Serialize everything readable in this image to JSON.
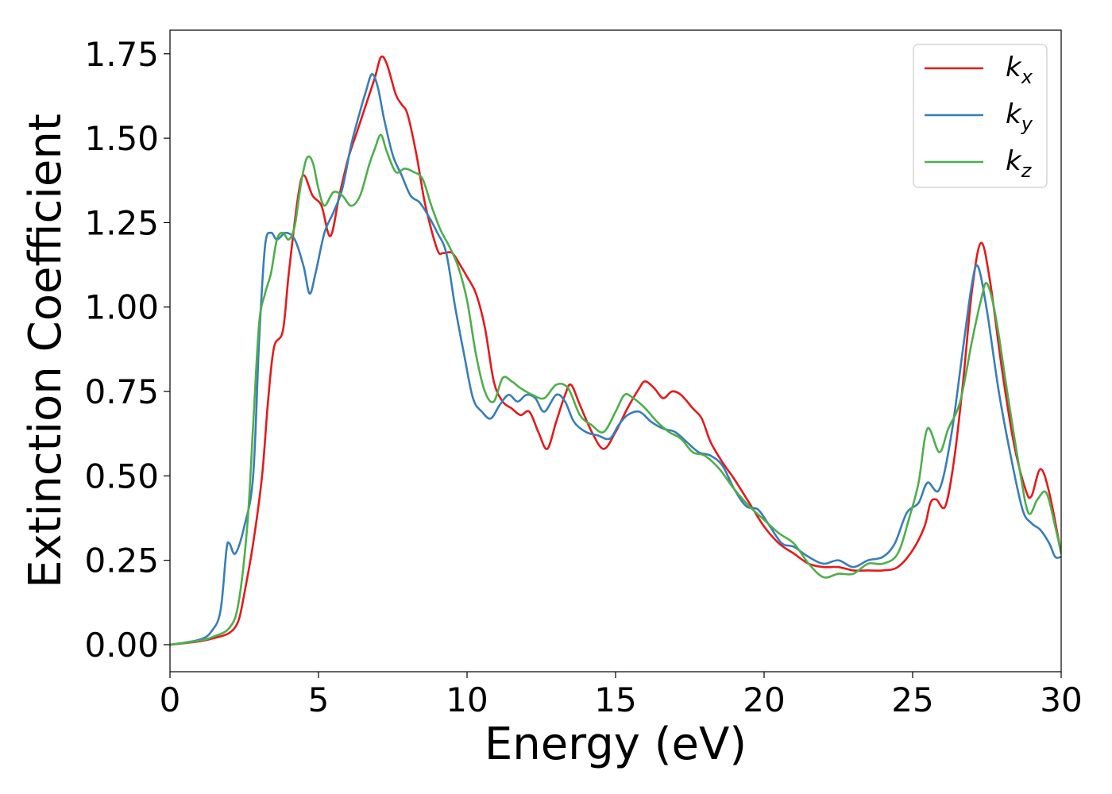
{
  "chart_data": {
    "type": "line",
    "title": "",
    "xlabel": "Energy (eV)",
    "ylabel": "Extinction Coefficient",
    "xlim": [
      0,
      30
    ],
    "ylim": [
      -0.08,
      1.82
    ],
    "xticks": [
      0,
      5,
      10,
      15,
      20,
      25,
      30
    ],
    "xtick_labels": [
      "0",
      "5",
      "10",
      "15",
      "20",
      "25",
      "30"
    ],
    "yticks": [
      0,
      0.25,
      0.5,
      0.75,
      1.0,
      1.25,
      1.5,
      1.75
    ],
    "ytick_labels": [
      "0.00",
      "0.25",
      "0.50",
      "0.75",
      "1.00",
      "1.25",
      "1.50",
      "1.75"
    ],
    "grid": false,
    "legend_position": "top-right",
    "series": [
      {
        "name": "k_x",
        "legend_base": "k",
        "legend_sub": "x",
        "color": "#e41a1c",
        "points": [
          [
            0,
            0
          ],
          [
            1,
            0.01
          ],
          [
            1.5,
            0.02
          ],
          [
            2,
            0.035
          ],
          [
            2.3,
            0.07
          ],
          [
            2.5,
            0.15
          ],
          [
            2.8,
            0.3
          ],
          [
            3.1,
            0.5
          ],
          [
            3.3,
            0.72
          ],
          [
            3.5,
            0.88
          ],
          [
            3.8,
            0.93
          ],
          [
            4.0,
            1.1
          ],
          [
            4.3,
            1.32
          ],
          [
            4.5,
            1.39
          ],
          [
            4.8,
            1.33
          ],
          [
            5.1,
            1.3
          ],
          [
            5.4,
            1.21
          ],
          [
            5.7,
            1.33
          ],
          [
            6.0,
            1.44
          ],
          [
            6.3,
            1.52
          ],
          [
            6.6,
            1.6
          ],
          [
            6.9,
            1.68
          ],
          [
            7.1,
            1.74
          ],
          [
            7.3,
            1.72
          ],
          [
            7.6,
            1.63
          ],
          [
            7.8,
            1.6
          ],
          [
            8.0,
            1.57
          ],
          [
            8.3,
            1.45
          ],
          [
            8.6,
            1.3
          ],
          [
            9.0,
            1.17
          ],
          [
            9.2,
            1.16
          ],
          [
            9.5,
            1.16
          ],
          [
            9.8,
            1.12
          ],
          [
            10.0,
            1.09
          ],
          [
            10.3,
            1.04
          ],
          [
            10.6,
            0.94
          ],
          [
            10.9,
            0.78
          ],
          [
            11.2,
            0.72
          ],
          [
            11.5,
            0.7
          ],
          [
            11.8,
            0.68
          ],
          [
            12.1,
            0.69
          ],
          [
            12.4,
            0.63
          ],
          [
            12.7,
            0.58
          ],
          [
            13.0,
            0.66
          ],
          [
            13.3,
            0.74
          ],
          [
            13.5,
            0.77
          ],
          [
            13.8,
            0.71
          ],
          [
            14.2,
            0.63
          ],
          [
            14.6,
            0.58
          ],
          [
            15.0,
            0.63
          ],
          [
            15.4,
            0.7
          ],
          [
            15.8,
            0.76
          ],
          [
            16.0,
            0.78
          ],
          [
            16.3,
            0.76
          ],
          [
            16.6,
            0.73
          ],
          [
            16.9,
            0.75
          ],
          [
            17.2,
            0.74
          ],
          [
            17.6,
            0.7
          ],
          [
            17.9,
            0.67
          ],
          [
            18.2,
            0.6
          ],
          [
            18.6,
            0.54
          ],
          [
            19.0,
            0.49
          ],
          [
            19.5,
            0.42
          ],
          [
            20.0,
            0.35
          ],
          [
            20.5,
            0.3
          ],
          [
            21.0,
            0.27
          ],
          [
            21.5,
            0.24
          ],
          [
            22.0,
            0.23
          ],
          [
            22.5,
            0.23
          ],
          [
            23.0,
            0.22
          ],
          [
            23.5,
            0.22
          ],
          [
            24.0,
            0.22
          ],
          [
            24.5,
            0.23
          ],
          [
            25.0,
            0.28
          ],
          [
            25.4,
            0.35
          ],
          [
            25.6,
            0.42
          ],
          [
            25.8,
            0.43
          ],
          [
            26.1,
            0.41
          ],
          [
            26.4,
            0.55
          ],
          [
            26.7,
            0.78
          ],
          [
            27.0,
            1.05
          ],
          [
            27.3,
            1.19
          ],
          [
            27.6,
            1.08
          ],
          [
            28.0,
            0.82
          ],
          [
            28.4,
            0.6
          ],
          [
            28.8,
            0.46
          ],
          [
            29.0,
            0.44
          ],
          [
            29.3,
            0.52
          ],
          [
            29.6,
            0.45
          ],
          [
            30,
            0.27
          ]
        ]
      },
      {
        "name": "k_y",
        "legend_base": "k",
        "legend_sub": "y",
        "color": "#377eb8",
        "points": [
          [
            0,
            0
          ],
          [
            1,
            0.015
          ],
          [
            1.4,
            0.04
          ],
          [
            1.7,
            0.1
          ],
          [
            1.9,
            0.28
          ],
          [
            2.0,
            0.3
          ],
          [
            2.2,
            0.27
          ],
          [
            2.5,
            0.35
          ],
          [
            2.8,
            0.5
          ],
          [
            3.0,
            0.9
          ],
          [
            3.2,
            1.18
          ],
          [
            3.4,
            1.22
          ],
          [
            3.6,
            1.2
          ],
          [
            3.9,
            1.22
          ],
          [
            4.2,
            1.2
          ],
          [
            4.5,
            1.12
          ],
          [
            4.7,
            1.04
          ],
          [
            4.9,
            1.1
          ],
          [
            5.2,
            1.22
          ],
          [
            5.5,
            1.28
          ],
          [
            5.8,
            1.35
          ],
          [
            6.1,
            1.48
          ],
          [
            6.4,
            1.58
          ],
          [
            6.6,
            1.64
          ],
          [
            6.8,
            1.69
          ],
          [
            7.0,
            1.65
          ],
          [
            7.2,
            1.56
          ],
          [
            7.5,
            1.45
          ],
          [
            7.8,
            1.39
          ],
          [
            8.1,
            1.33
          ],
          [
            8.4,
            1.31
          ],
          [
            8.7,
            1.27
          ],
          [
            9.0,
            1.22
          ],
          [
            9.3,
            1.16
          ],
          [
            9.6,
            1.0
          ],
          [
            9.9,
            0.86
          ],
          [
            10.2,
            0.73
          ],
          [
            10.5,
            0.69
          ],
          [
            10.8,
            0.67
          ],
          [
            11.1,
            0.71
          ],
          [
            11.4,
            0.74
          ],
          [
            11.7,
            0.72
          ],
          [
            12.0,
            0.74
          ],
          [
            12.3,
            0.73
          ],
          [
            12.6,
            0.69
          ],
          [
            13.0,
            0.74
          ],
          [
            13.3,
            0.72
          ],
          [
            13.6,
            0.66
          ],
          [
            14.0,
            0.63
          ],
          [
            14.4,
            0.62
          ],
          [
            14.8,
            0.61
          ],
          [
            15.1,
            0.65
          ],
          [
            15.4,
            0.68
          ],
          [
            15.8,
            0.69
          ],
          [
            16.2,
            0.66
          ],
          [
            16.6,
            0.64
          ],
          [
            17.0,
            0.63
          ],
          [
            17.4,
            0.6
          ],
          [
            17.8,
            0.57
          ],
          [
            18.2,
            0.56
          ],
          [
            18.6,
            0.53
          ],
          [
            19.0,
            0.46
          ],
          [
            19.4,
            0.41
          ],
          [
            19.8,
            0.4
          ],
          [
            20.2,
            0.35
          ],
          [
            20.6,
            0.3
          ],
          [
            21.0,
            0.29
          ],
          [
            21.5,
            0.26
          ],
          [
            22.0,
            0.24
          ],
          [
            22.5,
            0.25
          ],
          [
            23.0,
            0.23
          ],
          [
            23.5,
            0.25
          ],
          [
            24.0,
            0.26
          ],
          [
            24.4,
            0.3
          ],
          [
            24.8,
            0.39
          ],
          [
            25.2,
            0.42
          ],
          [
            25.5,
            0.48
          ],
          [
            25.9,
            0.46
          ],
          [
            26.3,
            0.62
          ],
          [
            26.7,
            0.88
          ],
          [
            27.0,
            1.07
          ],
          [
            27.2,
            1.12
          ],
          [
            27.5,
            0.99
          ],
          [
            27.9,
            0.75
          ],
          [
            28.3,
            0.56
          ],
          [
            28.7,
            0.4
          ],
          [
            29.0,
            0.36
          ],
          [
            29.3,
            0.34
          ],
          [
            29.6,
            0.3
          ],
          [
            29.8,
            0.26
          ],
          [
            30,
            0.26
          ]
        ]
      },
      {
        "name": "k_z",
        "legend_base": "k",
        "legend_sub": "z",
        "color": "#4daf4a",
        "points": [
          [
            0,
            0
          ],
          [
            1,
            0.012
          ],
          [
            1.5,
            0.025
          ],
          [
            2.0,
            0.05
          ],
          [
            2.3,
            0.12
          ],
          [
            2.6,
            0.35
          ],
          [
            2.8,
            0.65
          ],
          [
            3.0,
            0.95
          ],
          [
            3.2,
            1.04
          ],
          [
            3.4,
            1.1
          ],
          [
            3.6,
            1.2
          ],
          [
            3.8,
            1.22
          ],
          [
            4.0,
            1.2
          ],
          [
            4.2,
            1.24
          ],
          [
            4.4,
            1.36
          ],
          [
            4.6,
            1.44
          ],
          [
            4.8,
            1.43
          ],
          [
            5.0,
            1.35
          ],
          [
            5.2,
            1.3
          ],
          [
            5.5,
            1.34
          ],
          [
            5.8,
            1.33
          ],
          [
            6.1,
            1.3
          ],
          [
            6.4,
            1.33
          ],
          [
            6.7,
            1.42
          ],
          [
            6.9,
            1.47
          ],
          [
            7.1,
            1.51
          ],
          [
            7.3,
            1.46
          ],
          [
            7.6,
            1.4
          ],
          [
            7.9,
            1.41
          ],
          [
            8.2,
            1.4
          ],
          [
            8.5,
            1.38
          ],
          [
            8.8,
            1.3
          ],
          [
            9.1,
            1.23
          ],
          [
            9.4,
            1.18
          ],
          [
            9.7,
            1.12
          ],
          [
            10.0,
            1.02
          ],
          [
            10.3,
            0.86
          ],
          [
            10.6,
            0.75
          ],
          [
            10.9,
            0.72
          ],
          [
            11.2,
            0.79
          ],
          [
            11.5,
            0.78
          ],
          [
            11.8,
            0.76
          ],
          [
            12.2,
            0.74
          ],
          [
            12.6,
            0.73
          ],
          [
            13.0,
            0.77
          ],
          [
            13.4,
            0.76
          ],
          [
            13.8,
            0.68
          ],
          [
            14.2,
            0.65
          ],
          [
            14.6,
            0.63
          ],
          [
            15.0,
            0.69
          ],
          [
            15.3,
            0.74
          ],
          [
            15.6,
            0.73
          ],
          [
            16.0,
            0.7
          ],
          [
            16.4,
            0.66
          ],
          [
            16.8,
            0.63
          ],
          [
            17.2,
            0.61
          ],
          [
            17.6,
            0.57
          ],
          [
            18.0,
            0.56
          ],
          [
            18.5,
            0.52
          ],
          [
            19.0,
            0.46
          ],
          [
            19.5,
            0.41
          ],
          [
            20.0,
            0.37
          ],
          [
            20.5,
            0.33
          ],
          [
            21.0,
            0.3
          ],
          [
            21.5,
            0.24
          ],
          [
            22.0,
            0.2
          ],
          [
            22.5,
            0.21
          ],
          [
            23.0,
            0.21
          ],
          [
            23.5,
            0.24
          ],
          [
            24.0,
            0.24
          ],
          [
            24.5,
            0.27
          ],
          [
            24.9,
            0.38
          ],
          [
            25.2,
            0.48
          ],
          [
            25.5,
            0.64
          ],
          [
            25.9,
            0.57
          ],
          [
            26.2,
            0.64
          ],
          [
            26.6,
            0.72
          ],
          [
            27.0,
            0.9
          ],
          [
            27.3,
            1.02
          ],
          [
            27.5,
            1.07
          ],
          [
            27.8,
            0.97
          ],
          [
            28.2,
            0.74
          ],
          [
            28.6,
            0.52
          ],
          [
            28.9,
            0.39
          ],
          [
            29.2,
            0.43
          ],
          [
            29.5,
            0.45
          ],
          [
            29.8,
            0.35
          ],
          [
            30,
            0.27
          ]
        ]
      }
    ]
  }
}
